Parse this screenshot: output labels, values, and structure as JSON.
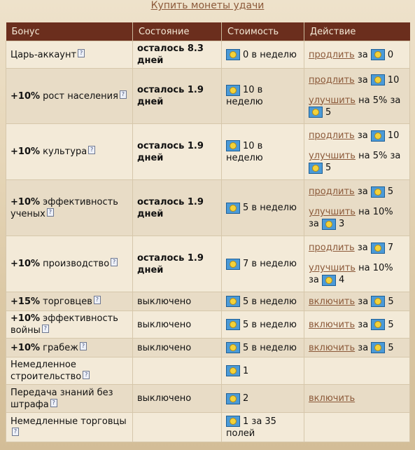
{
  "top_link": "Купить монеты удачи",
  "headers": {
    "bonus": "Бонус",
    "state": "Состояние",
    "cost": "Стоимость",
    "action": "Действие"
  },
  "words": {
    "prolong": "продлить",
    "upgrade": "улучшить",
    "enable": "включить",
    "for": "за",
    "on": "на"
  },
  "rows": [
    {
      "pct": "",
      "name": "Царь-аккаунт",
      "state": "осталось 8.3 дней",
      "cost": "0 в неделю",
      "actions": [
        {
          "label": "продлить",
          "cost": "0"
        }
      ]
    },
    {
      "pct": "+10%",
      "name": "рост населения",
      "state": "осталось 1.9 дней",
      "cost": "10 в неделю",
      "actions": [
        {
          "label": "продлить",
          "cost": "10"
        },
        {
          "label": "улучшить",
          "extra": "на 5%",
          "cost": "5"
        }
      ]
    },
    {
      "pct": "+10%",
      "name": "культура",
      "state": "осталось 1.9 дней",
      "cost": "10 в неделю",
      "actions": [
        {
          "label": "продлить",
          "cost": "10"
        },
        {
          "label": "улучшить",
          "extra": "на 5%",
          "cost": "5"
        }
      ]
    },
    {
      "pct": "+10%",
      "name": "эффективность ученых",
      "state": "осталось 1.9 дней",
      "cost": "5 в неделю",
      "actions": [
        {
          "label": "продлить",
          "cost": "5"
        },
        {
          "label": "улучшить",
          "extra": "на 10%",
          "cost": "3"
        }
      ]
    },
    {
      "pct": "+10%",
      "name": "производство",
      "state": "осталось 1.9 дней",
      "cost": "7 в неделю",
      "actions": [
        {
          "label": "продлить",
          "cost": "7"
        },
        {
          "label": "улучшить",
          "extra": "на 10%",
          "cost": "4"
        }
      ]
    },
    {
      "pct": "+15%",
      "name": "торговцев",
      "state": "выключено",
      "cost": "5 в неделю",
      "actions": [
        {
          "label": "включить",
          "cost": "5"
        }
      ]
    },
    {
      "pct": "+10%",
      "name": "эффективность войны",
      "state": "выключено",
      "cost": "5 в неделю",
      "actions": [
        {
          "label": "включить",
          "cost": "5"
        }
      ]
    },
    {
      "pct": "+10%",
      "name": "грабеж",
      "state": "выключено",
      "cost": "5 в неделю",
      "actions": [
        {
          "label": "включить",
          "cost": "5"
        }
      ]
    },
    {
      "pct": "",
      "name": "Немедленное строительство",
      "state": "",
      "cost": "1",
      "actions": []
    },
    {
      "pct": "",
      "name": "Передача знаний без штрафа",
      "state": "выключено",
      "cost": "2",
      "actions": [
        {
          "label": "включить",
          "cost": ""
        }
      ]
    },
    {
      "pct": "",
      "name": "Немедленные торговцы",
      "state": "",
      "cost": "1 за 35 полей",
      "actions": []
    }
  ]
}
